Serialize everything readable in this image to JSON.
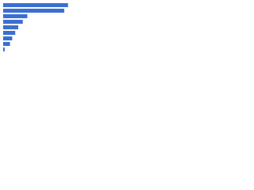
{
  "chart_data": {
    "type": "hbar",
    "categories": [
      null,
      null,
      null,
      null,
      null,
      null,
      null,
      null,
      null
    ],
    "values": [
      86,
      81,
      32,
      26,
      20,
      16,
      12,
      9,
      2
    ],
    "color": "#3b6fd0",
    "xlim": [
      0,
      100
    ]
  }
}
